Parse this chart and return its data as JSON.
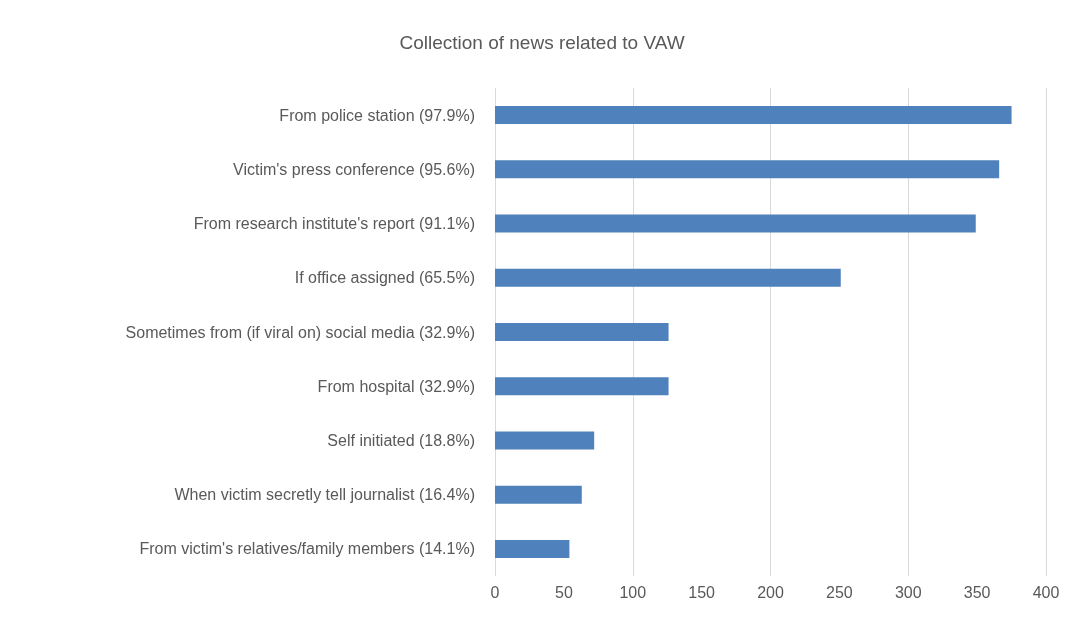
{
  "chart_data": {
    "type": "bar",
    "orientation": "horizontal",
    "title": "Collection of news related to VAW",
    "categories": [
      "From police station (97.9%)",
      "Victim's press conference (95.6%)",
      "From research institute's report (91.1%)",
      "If office assigned (65.5%)",
      "Sometimes from (if viral on) social media (32.9%)",
      "From hospital (32.9%)",
      "Self initiated (18.8%)",
      "When victim secretly tell journalist (16.4%)",
      "From victim's relatives/family members (14.1%)"
    ],
    "values": [
      375,
      366,
      349,
      251,
      126,
      126,
      72,
      63,
      54
    ],
    "color": "#4f81bd",
    "xlim": [
      0,
      400
    ],
    "xticks": [
      0,
      50,
      100,
      150,
      200,
      250,
      300,
      350,
      400
    ],
    "grid": "x"
  }
}
